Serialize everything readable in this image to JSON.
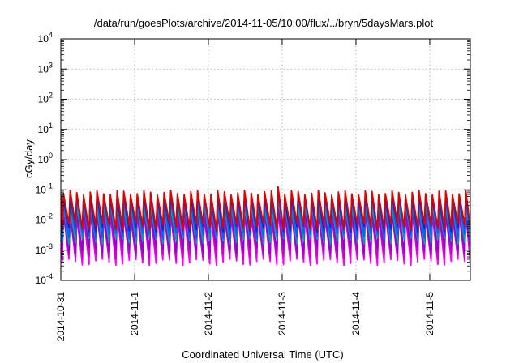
{
  "chart_data": {
    "type": "line",
    "title": "/data/run/goesPlots/archive/2014-11-05/10:00/flux/../bryn/5daysMars.plot",
    "xlabel": "Coordinated Universal Time (UTC)",
    "ylabel": "cGy/day",
    "y_scale": "log",
    "ylim_exponent": [
      -4,
      4
    ],
    "y_ticks": [
      {
        "base": "10",
        "exp": "-4"
      },
      {
        "base": "10",
        "exp": "-3"
      },
      {
        "base": "10",
        "exp": "-2"
      },
      {
        "base": "10",
        "exp": "-1"
      },
      {
        "base": "10",
        "exp": "0"
      },
      {
        "base": "10",
        "exp": "1"
      },
      {
        "base": "10",
        "exp": "2"
      },
      {
        "base": "10",
        "exp": "3"
      },
      {
        "base": "10",
        "exp": "4"
      }
    ],
    "x_range_days": [
      0,
      5.55
    ],
    "x_ticks": [
      {
        "label": "2014-10-31",
        "day": 0
      },
      {
        "label": "2014-11-1",
        "day": 1
      },
      {
        "label": "2014-11-2",
        "day": 2
      },
      {
        "label": "2014-11-3",
        "day": 3
      },
      {
        "label": "2014-11-4",
        "day": 4
      },
      {
        "label": "2014-11-5",
        "day": 5
      }
    ],
    "grid": true,
    "oscillation_period_days": 0.0909,
    "series": [
      {
        "color": "#ff00ff",
        "peak": 0.018,
        "trough": 0.0004
      },
      {
        "color": "#cc00cc",
        "peak": 0.014,
        "trough": 0.0006
      },
      {
        "color": "#9400d3",
        "peak": 0.02,
        "trough": 0.001
      },
      {
        "color": "#00a0a0",
        "peak": 0.03,
        "trough": 0.002
      },
      {
        "color": "#0060ff",
        "peak": 0.045,
        "trough": 0.003
      },
      {
        "color": "#2020c0",
        "peak": 0.06,
        "trough": 0.005
      },
      {
        "color": "#dd0000",
        "peak": 0.08,
        "trough": 0.006
      }
    ]
  }
}
